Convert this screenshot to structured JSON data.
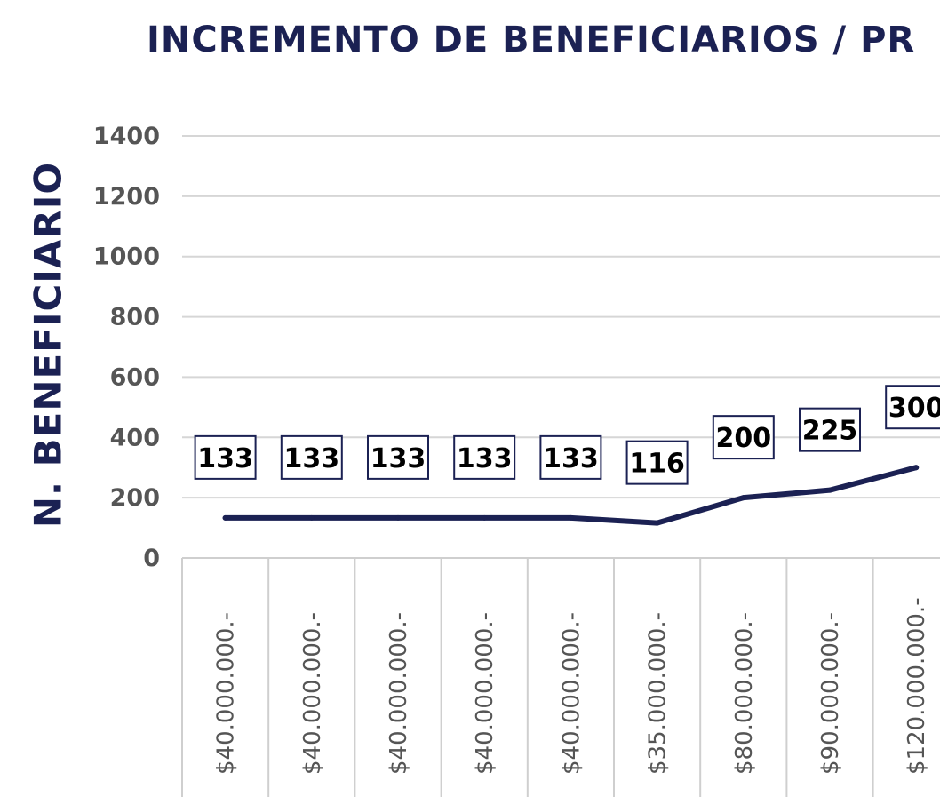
{
  "chart_data": {
    "type": "line",
    "title": "INCREMENTO DE BENEFICIARIOS / PR",
    "ylabel": "N. BENEFICIARIO",
    "xlabel": "",
    "ylim": [
      0,
      1400
    ],
    "yticks": [
      0,
      200,
      400,
      600,
      800,
      1000,
      1200,
      1400
    ],
    "categories": [
      "$40.000.000.-",
      "$40.000.000.-",
      "$40.000.000.-",
      "$40.000.000.-",
      "$40.000.000.-",
      "$35.000.000.-",
      "$80.000.000.-",
      "$90.000.000.-",
      "$120.000.000.-"
    ],
    "series": [
      {
        "values": [
          133,
          133,
          133,
          133,
          133,
          116,
          200,
          225,
          300
        ],
        "color": "#1b2153"
      }
    ],
    "grid": true,
    "data_labels": true
  }
}
